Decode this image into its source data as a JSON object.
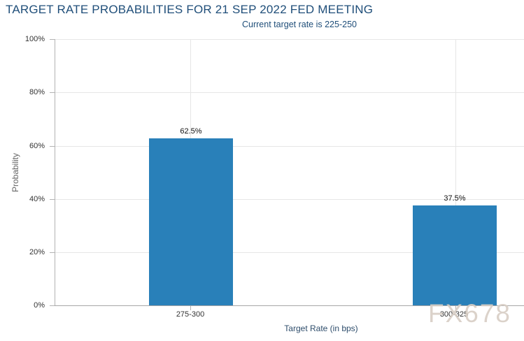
{
  "chart_data": {
    "type": "bar",
    "title": "TARGET RATE PROBABILITIES FOR 21 SEP 2022 FED MEETING",
    "subtitle": "Current target rate is 225-250",
    "categories": [
      "275-300",
      "300-325"
    ],
    "values": [
      62.5,
      37.5
    ],
    "data_labels": [
      "62.5%",
      "37.5%"
    ],
    "xlabel": "Target Rate (in bps)",
    "ylabel": "Probability",
    "ylim": [
      0,
      100
    ],
    "ytick_labels": [
      "0%",
      "20%",
      "40%",
      "60%",
      "80%",
      "100%"
    ],
    "grid": true,
    "legend_position": "none",
    "bar_color": "#2980b9"
  },
  "watermark_text": "FX678",
  "colors": {
    "title_text": "#1f4e79",
    "bar": "#2980b9",
    "gridline": "#e6e6e6",
    "axis_line": "#b3b3b3",
    "watermark": "#d8cec5"
  }
}
